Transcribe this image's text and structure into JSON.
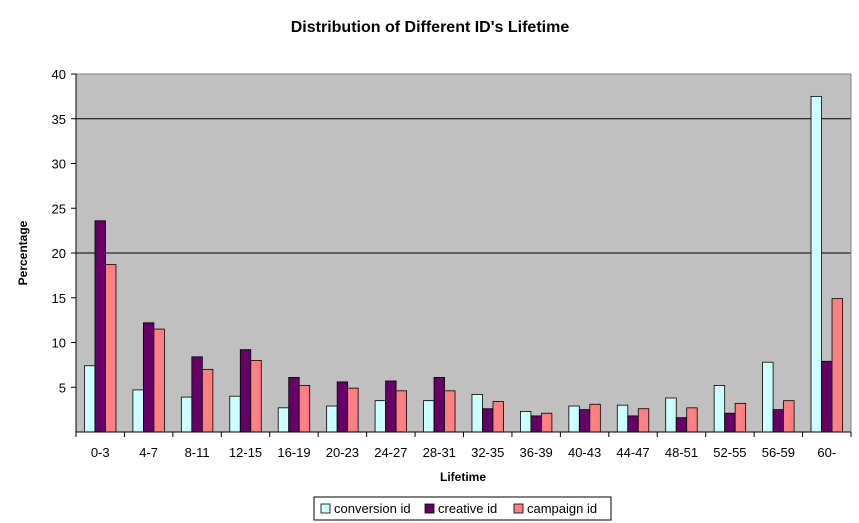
{
  "chart_data": {
    "type": "bar",
    "title": "Distribution of Different ID's Lifetime",
    "xlabel": "Lifetime",
    "ylabel": "Percentage",
    "ylim": [
      0,
      40
    ],
    "yticks": [
      5,
      10,
      15,
      20,
      25,
      30,
      35,
      40
    ],
    "gridlines": [
      20,
      35
    ],
    "categories": [
      "0-3",
      "4-7",
      "8-11",
      "12-15",
      "16-19",
      "20-23",
      "24-27",
      "28-31",
      "32-35",
      "36-39",
      "40-43",
      "44-47",
      "48-51",
      "52-55",
      "56-59",
      "60-"
    ],
    "series": [
      {
        "name": "conversion id",
        "color": "#ccffff",
        "values": [
          7.4,
          4.7,
          3.9,
          4.0,
          2.7,
          2.9,
          3.5,
          3.5,
          4.2,
          2.3,
          2.9,
          3.0,
          3.8,
          5.2,
          7.8,
          37.5
        ]
      },
      {
        "name": "creative id",
        "color": "#660066",
        "values": [
          23.6,
          12.2,
          8.4,
          9.2,
          6.1,
          5.6,
          5.7,
          6.1,
          2.6,
          1.8,
          2.5,
          1.8,
          1.6,
          2.1,
          2.5,
          7.9
        ]
      },
      {
        "name": "campaign id",
        "color": "#ff8080",
        "values": [
          18.7,
          11.5,
          7.0,
          8.0,
          5.2,
          4.9,
          4.6,
          4.6,
          3.4,
          2.1,
          3.1,
          2.6,
          2.7,
          3.2,
          3.5,
          14.9
        ]
      }
    ],
    "plot_background": "#c0c0c0",
    "legend_position": "bottom"
  }
}
